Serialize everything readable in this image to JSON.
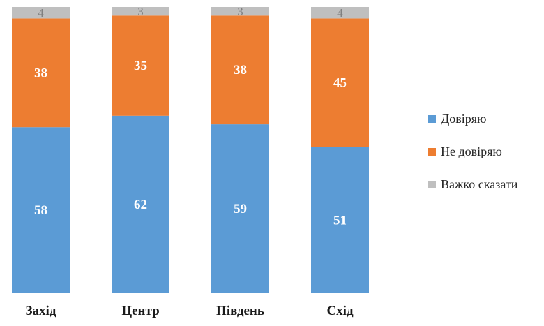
{
  "chart_data": {
    "type": "bar",
    "stacked": true,
    "categories": [
      "Захід",
      "Центр",
      "Південь",
      "Схід"
    ],
    "series": [
      {
        "name": "Довіряю",
        "color": "#5b9bd5",
        "values": [
          58,
          62,
          59,
          51
        ]
      },
      {
        "name": "Не довіряю",
        "color": "#ed7d31",
        "values": [
          38,
          35,
          38,
          45
        ]
      },
      {
        "name": "Важко сказати",
        "color": "#bfbfbf",
        "values": [
          4,
          3,
          3,
          4
        ]
      }
    ],
    "ylim": [
      0,
      100
    ],
    "grid": false,
    "legend_position": "right"
  }
}
